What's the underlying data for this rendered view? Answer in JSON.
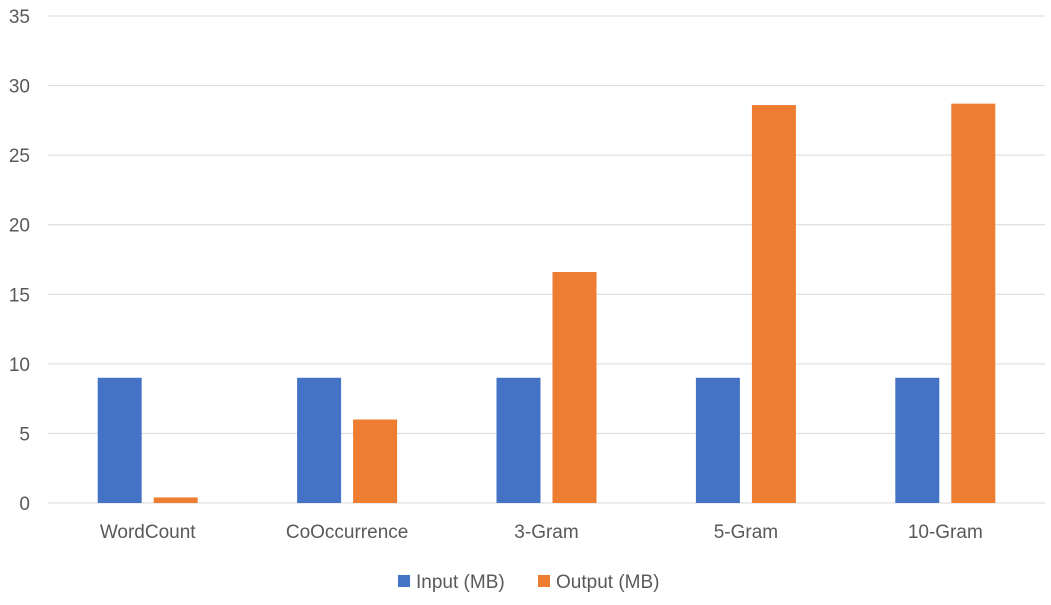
{
  "chart_data": {
    "type": "bar",
    "title": "",
    "xlabel": "",
    "ylabel": "",
    "categories": [
      "WordCount",
      "CoOccurrence",
      "3-Gram",
      "5-Gram",
      "10-Gram"
    ],
    "series": [
      {
        "name": "Input (MB)",
        "color": "#4472c4",
        "values": [
          9.0,
          9.0,
          9.0,
          9.0,
          9.0
        ]
      },
      {
        "name": "Output (MB)",
        "color": "#ed7d31",
        "values": [
          0.4,
          6.0,
          16.6,
          28.6,
          28.7
        ]
      }
    ],
    "ylim": [
      0,
      35
    ],
    "yticks": [
      "0",
      "5",
      "10",
      "15",
      "20",
      "25",
      "30",
      "35"
    ],
    "grid": true,
    "legend_position": "bottom"
  }
}
